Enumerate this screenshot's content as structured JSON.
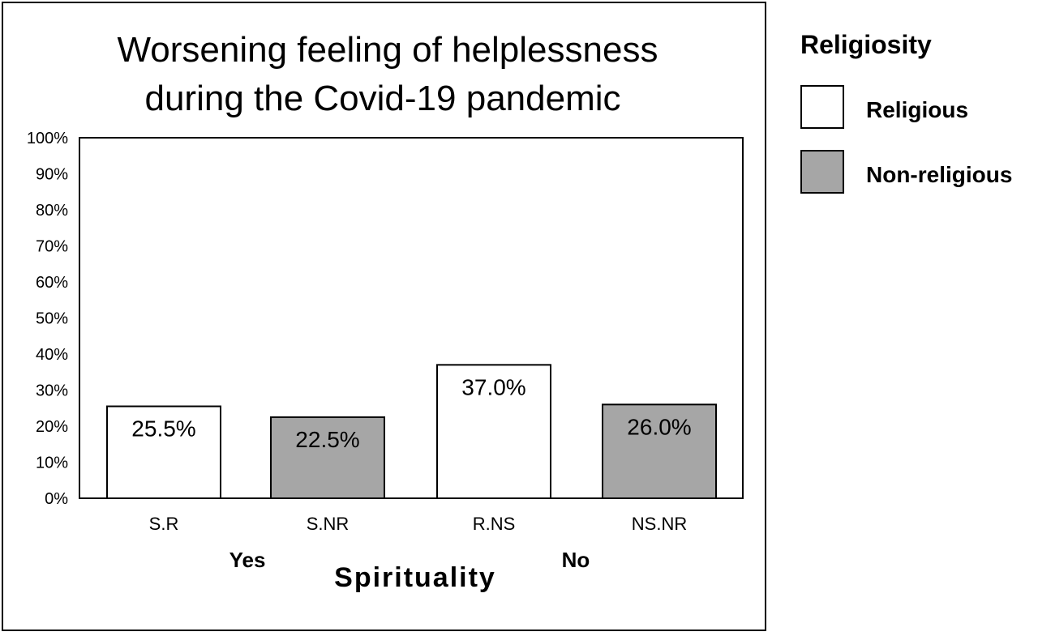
{
  "chart_data": {
    "type": "bar",
    "title": "Worsening feeling of helplessness during the Covid-19 pandemic",
    "title_lines": [
      "Worsening feeling of helplessness",
      "during the Covid-19 pandemic"
    ],
    "categories": [
      "S.R",
      "S.NR",
      "R.NS",
      "NS.NR"
    ],
    "values": [
      25.5,
      22.5,
      37.0,
      26.0
    ],
    "data_labels": [
      "25.5%",
      "22.5%",
      "37.0%",
      "26.0%"
    ],
    "bar_series": [
      "Religious",
      "Non-religious",
      "Religious",
      "Non-religious"
    ],
    "series": [
      {
        "name": "Religious",
        "color": "#ffffff"
      },
      {
        "name": "Non-religious",
        "color": "#a6a6a6"
      }
    ],
    "xlabel": "Spirituality",
    "x_groups": [
      {
        "label": "Yes",
        "categories": [
          "S.R",
          "S.NR"
        ]
      },
      {
        "label": "No",
        "categories": [
          "R.NS",
          "NS.NR"
        ]
      }
    ],
    "ylabel": "",
    "ylim": [
      0,
      100
    ],
    "yticks": [
      "0%",
      "10%",
      "20%",
      "30%",
      "40%",
      "50%",
      "60%",
      "70%",
      "80%",
      "90%",
      "100%"
    ],
    "legend": {
      "title": "Religiosity",
      "position": "right",
      "items": [
        "Religious",
        "Non-religious"
      ]
    },
    "grid": false
  }
}
